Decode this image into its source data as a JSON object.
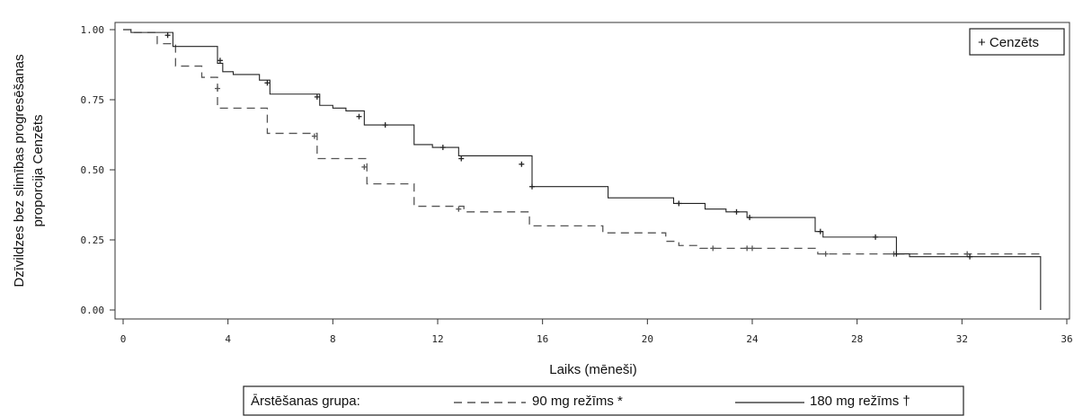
{
  "chart_data": {
    "type": "line",
    "subtype": "kaplan-meier",
    "title": "",
    "xlabel": "Laiks (mēneši)",
    "ylabel_line1": "Dzīvildzes bez slimības progresēšanas",
    "ylabel_line2": "proporcija Cenzēts",
    "xlim": [
      0,
      36
    ],
    "ylim": [
      0,
      1
    ],
    "x_ticks": [
      0,
      4,
      8,
      12,
      16,
      20,
      24,
      28,
      32,
      36
    ],
    "x_tick_labels": [
      "0",
      "4",
      "8",
      "12",
      "16",
      "20",
      "24",
      "28",
      "32",
      "36"
    ],
    "y_ticks": [
      0,
      0.25,
      0.5,
      0.75,
      1.0
    ],
    "y_tick_labels": [
      "0.00",
      "0.25",
      "0.50",
      "0.75",
      "1.00"
    ],
    "grid": false,
    "censor_note": "+ Cenzēts",
    "legend": {
      "placement": "bottom",
      "group_label": "Ārstēšanas grupa:",
      "entries": [
        "90 mg režīms *",
        "180 mg režīms †"
      ]
    },
    "series": [
      {
        "name": "90 mg režīms *",
        "style": "dashed",
        "color": "#555555",
        "steps": [
          [
            0,
            1.0
          ],
          [
            0.3,
            0.99
          ],
          [
            1.3,
            0.95
          ],
          [
            2.0,
            0.87
          ],
          [
            3.0,
            0.83
          ],
          [
            3.6,
            0.72
          ],
          [
            5.5,
            0.63
          ],
          [
            7.4,
            0.54
          ],
          [
            9.3,
            0.45
          ],
          [
            11.1,
            0.37
          ],
          [
            13.0,
            0.35
          ],
          [
            15.5,
            0.3
          ],
          [
            18.3,
            0.275
          ],
          [
            20.7,
            0.245
          ],
          [
            21.2,
            0.23
          ],
          [
            22.0,
            0.22
          ],
          [
            26.5,
            0.2
          ],
          [
            35.0,
            0.19
          ]
        ],
        "censors": [
          [
            3.6,
            0.79
          ],
          [
            7.3,
            0.62
          ],
          [
            9.2,
            0.51
          ],
          [
            12.8,
            0.36
          ],
          [
            22.5,
            0.22
          ],
          [
            23.8,
            0.22
          ],
          [
            24.0,
            0.22
          ],
          [
            26.8,
            0.2
          ],
          [
            29.4,
            0.2
          ],
          [
            32.2,
            0.2
          ]
        ]
      },
      {
        "name": "180 mg režīms †",
        "style": "solid",
        "color": "#222222",
        "steps": [
          [
            0,
            1.0
          ],
          [
            0.3,
            0.99
          ],
          [
            1.9,
            0.94
          ],
          [
            3.6,
            0.88
          ],
          [
            3.8,
            0.85
          ],
          [
            4.2,
            0.84
          ],
          [
            5.2,
            0.82
          ],
          [
            5.6,
            0.77
          ],
          [
            7.5,
            0.73
          ],
          [
            8.0,
            0.72
          ],
          [
            8.5,
            0.71
          ],
          [
            9.2,
            0.66
          ],
          [
            11.1,
            0.59
          ],
          [
            11.8,
            0.58
          ],
          [
            12.8,
            0.55
          ],
          [
            15.6,
            0.44
          ],
          [
            18.5,
            0.4
          ],
          [
            21.0,
            0.38
          ],
          [
            22.2,
            0.36
          ],
          [
            23.0,
            0.35
          ],
          [
            23.8,
            0.33
          ],
          [
            26.4,
            0.28
          ],
          [
            26.7,
            0.26
          ],
          [
            29.5,
            0.2
          ],
          [
            30.0,
            0.19
          ],
          [
            35.0,
            0.0
          ]
        ],
        "censors": [
          [
            1.7,
            0.98
          ],
          [
            3.7,
            0.89
          ],
          [
            5.5,
            0.81
          ],
          [
            7.4,
            0.76
          ],
          [
            9.0,
            0.69
          ],
          [
            10.0,
            0.66
          ],
          [
            12.2,
            0.58
          ],
          [
            12.9,
            0.54
          ],
          [
            15.2,
            0.52
          ],
          [
            15.6,
            0.44
          ],
          [
            21.2,
            0.38
          ],
          [
            23.4,
            0.35
          ],
          [
            23.9,
            0.33
          ],
          [
            26.6,
            0.28
          ],
          [
            28.7,
            0.26
          ],
          [
            29.5,
            0.2
          ],
          [
            32.3,
            0.19
          ]
        ]
      }
    ]
  }
}
